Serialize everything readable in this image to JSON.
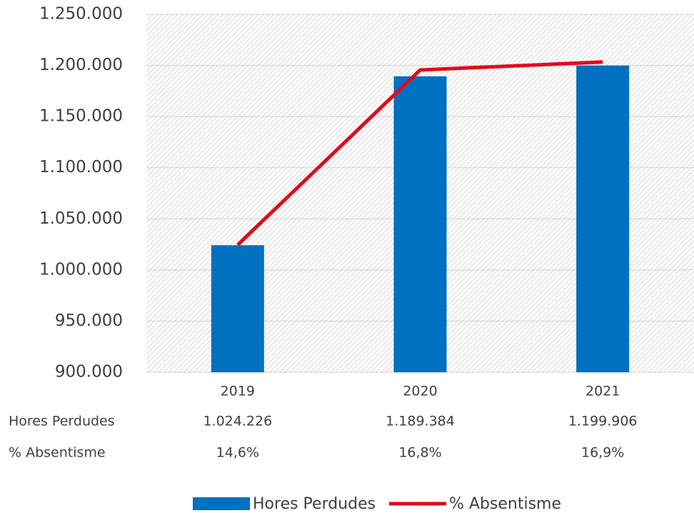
{
  "chart_data": {
    "type": "bar",
    "categories": [
      "2019",
      "2020",
      "2021"
    ],
    "series": [
      {
        "name": "Hores Perdudes",
        "type": "bar",
        "color": "#0070c0",
        "values": [
          1024226,
          1189384,
          1199906
        ],
        "value_labels": [
          "1.024.226",
          "1.189.384",
          "1.199.906"
        ]
      },
      {
        "name": "% Absentisme",
        "type": "line",
        "axis": "y2",
        "color": "#e00b1c",
        "values": [
          14.6,
          16.8,
          16.9
        ],
        "value_labels": [
          "14,6%",
          "16,8%",
          "16,9%"
        ]
      }
    ],
    "ylim": [
      900000,
      1250000
    ],
    "yticks": [
      {
        "value": 900000,
        "label": "900.000"
      },
      {
        "value": 950000,
        "label": "950.000"
      },
      {
        "value": 1000000,
        "label": "1.000.000"
      },
      {
        "value": 1050000,
        "label": "1.050.000"
      },
      {
        "value": 1100000,
        "label": "1.100.000"
      },
      {
        "value": 1150000,
        "label": "1.150.000"
      },
      {
        "value": 1200000,
        "label": "1.200.000"
      },
      {
        "value": 1250000,
        "label": "1.250.000"
      }
    ],
    "y2lim": [
      13,
      17.5
    ],
    "grid": true,
    "legend": "bottom"
  }
}
